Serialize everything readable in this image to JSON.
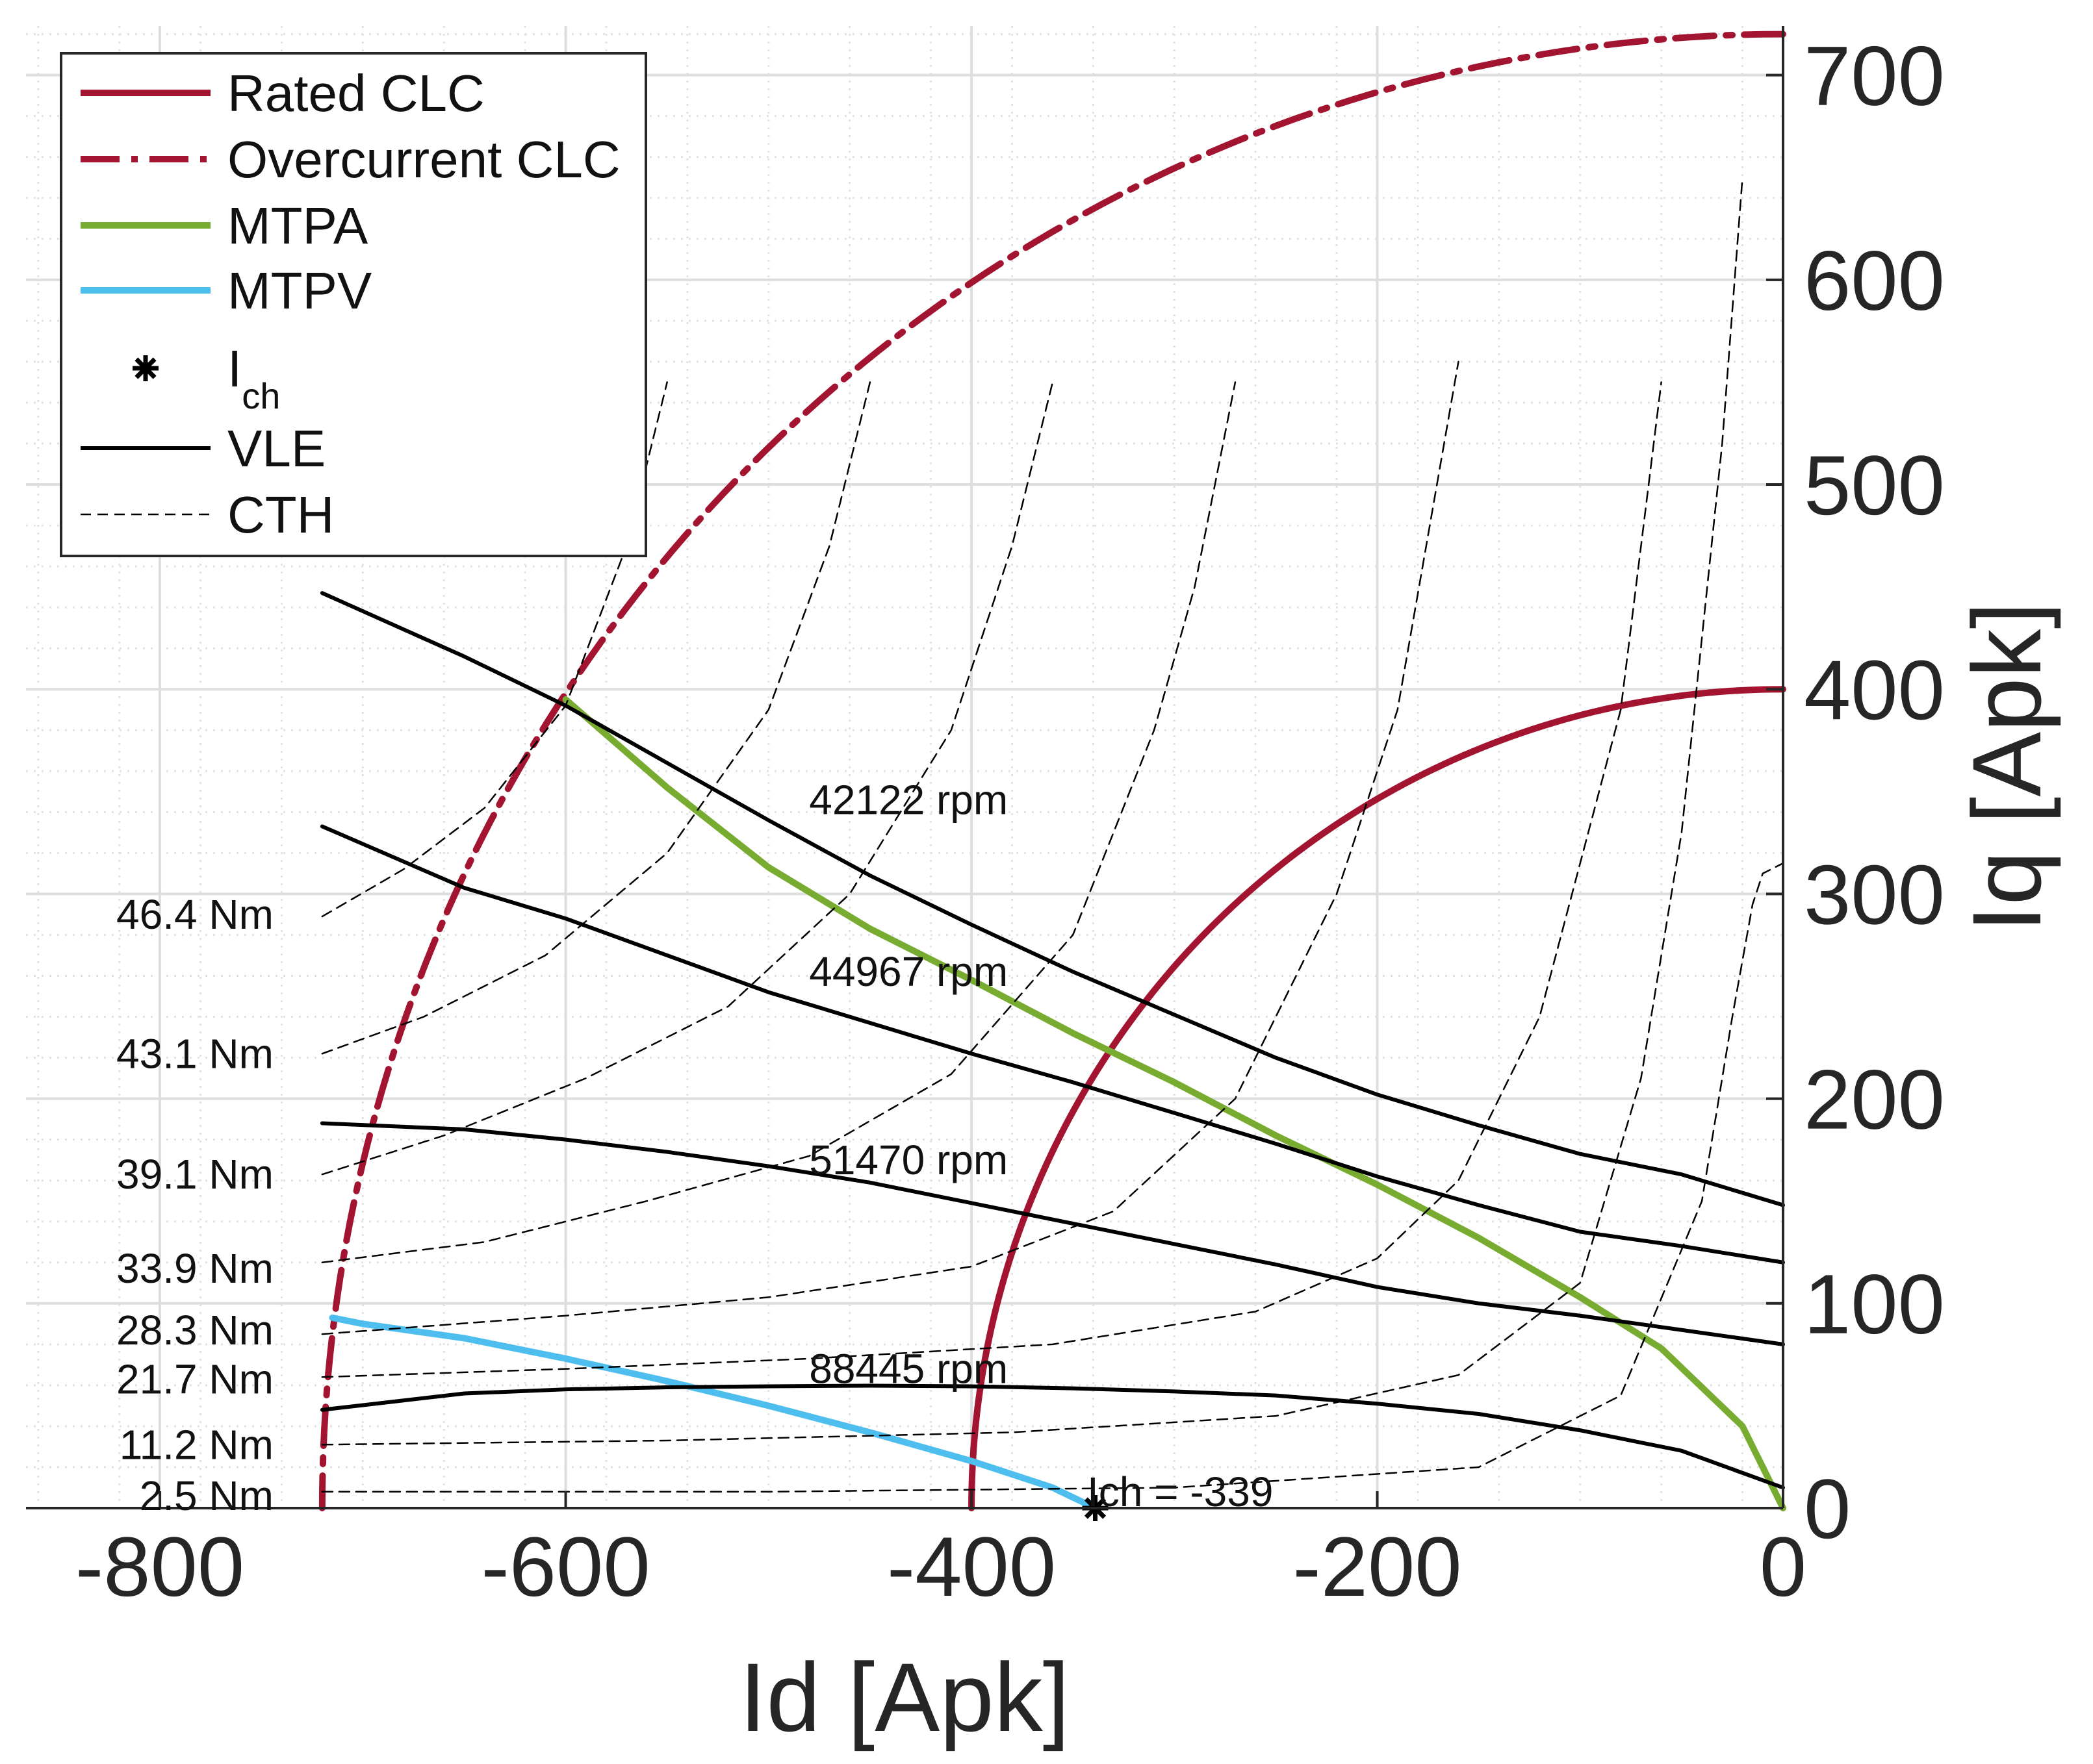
{
  "chart_data": {
    "type": "line",
    "xlabel": "Id [Apk]",
    "ylabel": "Iq [Apk]",
    "xlim": [
      -866,
      0
    ],
    "ylim": [
      0,
      724
    ],
    "x_ticks": [
      -800,
      -600,
      -400,
      -200,
      0
    ],
    "x_tick_labels": [
      "-800",
      "-600",
      "-400",
      "-200",
      "0"
    ],
    "y_ticks": [
      0,
      100,
      200,
      300,
      400,
      500,
      600,
      700
    ],
    "y_tick_labels": [
      "0",
      "100",
      "200",
      "300",
      "400",
      "500",
      "600",
      "700"
    ],
    "y_axis_location": "right",
    "grid": "major and minor",
    "legend_position": "top-left",
    "legend": [
      {
        "label": "Rated CLC",
        "style": "solid",
        "color": "#A2142F",
        "marker": "none"
      },
      {
        "label": "Overcurrent CLC",
        "style": "dashdot",
        "color": "#A2142F",
        "marker": "none"
      },
      {
        "label": "MTPA",
        "style": "solid",
        "color": "#77AC30",
        "marker": "none"
      },
      {
        "label": "MTPV",
        "style": "solid",
        "color": "#4DBEEE",
        "marker": "none"
      },
      {
        "label": "I",
        "subscript": "ch",
        "style": "none",
        "color": "#000000",
        "marker": "asterisk"
      },
      {
        "label": "VLE",
        "style": "solid",
        "color": "#000000",
        "marker": "none"
      },
      {
        "label": "CTH",
        "style": "dashed",
        "color": "#000000",
        "marker": "none"
      }
    ],
    "series": [
      {
        "name": "Rated CLC",
        "kind": "circle",
        "radius": 400,
        "id_range": [
          -400,
          0
        ]
      },
      {
        "name": "Overcurrent CLC",
        "kind": "circle",
        "radius": 720,
        "id_range": [
          -720,
          0
        ]
      },
      {
        "name": "MTPA",
        "x": [
          0,
          -20,
          -60,
          -100,
          -150,
          -200,
          -250,
          -300,
          -350,
          -400,
          -450,
          -500,
          -550,
          -600
        ],
        "y": [
          0,
          40,
          78,
          103,
          132,
          158,
          182,
          208,
          232,
          258,
          283,
          313,
          352,
          395
        ]
      },
      {
        "name": "MTPV",
        "x": [
          -339,
          -360,
          -400,
          -450,
          -500,
          -550,
          -600,
          -650,
          -700,
          -715
        ],
        "y": [
          0,
          10,
          23,
          37,
          50,
          62,
          73,
          83,
          90,
          93
        ]
      },
      {
        "name": "Ich",
        "x": [
          -339
        ],
        "y": [
          0
        ]
      },
      {
        "name": "VLE 42122 rpm",
        "x": [
          -720,
          -650,
          -600,
          -550,
          -500,
          -450,
          -400,
          -350,
          -300,
          -250,
          -200,
          -150,
          -100,
          -50,
          0
        ],
        "y": [
          447,
          416,
          392,
          364,
          336,
          309,
          285,
          262,
          241,
          220,
          202,
          187,
          173,
          163,
          148
        ]
      },
      {
        "name": "VLE 44967 rpm",
        "x": [
          -720,
          -650,
          -600,
          -550,
          -500,
          -450,
          -400,
          -350,
          -300,
          -250,
          -200,
          -150,
          -100,
          -50,
          0
        ],
        "y": [
          333,
          303,
          288,
          270,
          252,
          237,
          222,
          208,
          193,
          178,
          162,
          148,
          135,
          128,
          120
        ]
      },
      {
        "name": "VLE 51470 rpm",
        "x": [
          -720,
          -650,
          -600,
          -550,
          -500,
          -450,
          -400,
          -350,
          -300,
          -250,
          -200,
          -150,
          -100,
          -50,
          0
        ],
        "y": [
          188,
          185,
          180,
          174,
          167,
          159,
          149,
          139,
          129,
          119,
          108,
          100,
          94,
          87,
          80
        ]
      },
      {
        "name": "VLE 88445 rpm",
        "x": [
          -720,
          -650,
          -600,
          -550,
          -500,
          -450,
          -400,
          -350,
          -300,
          -250,
          -200,
          -150,
          -100,
          -50,
          0
        ],
        "y": [
          48,
          56,
          58,
          59,
          59.5,
          59.8,
          59.5,
          58.5,
          57,
          55,
          51,
          46,
          38,
          28,
          10
        ]
      },
      {
        "name": "CTH 46.4 Nm",
        "x": [
          -720,
          -680,
          -640,
          -600,
          -570,
          -550
        ],
        "y": [
          289,
          312,
          342,
          392,
          470,
          550
        ]
      },
      {
        "name": "CTH 43.1 Nm",
        "x": [
          -720,
          -670,
          -610,
          -550,
          -500,
          -470,
          -450
        ],
        "y": [
          222,
          240,
          270,
          320,
          390,
          470,
          550
        ]
      },
      {
        "name": "CTH 39.1 Nm",
        "x": [
          -720,
          -660,
          -590,
          -520,
          -460,
          -410,
          -380,
          -360
        ],
        "y": [
          163,
          182,
          210,
          245,
          300,
          380,
          470,
          550
        ]
      },
      {
        "name": "CTH 33.9 Nm",
        "x": [
          -720,
          -640,
          -560,
          -480,
          -410,
          -350,
          -310,
          -290,
          -270
        ],
        "y": [
          120,
          130,
          150,
          172,
          212,
          280,
          380,
          450,
          550
        ]
      },
      {
        "name": "CTH 28.3 Nm",
        "x": [
          -720,
          -600,
          -500,
          -400,
          -330,
          -270,
          -220,
          -190,
          -160
        ],
        "y": [
          85,
          94,
          103,
          118,
          145,
          200,
          300,
          390,
          560
        ]
      },
      {
        "name": "CTH 21.7 Nm",
        "x": [
          -720,
          -600,
          -480,
          -360,
          -260,
          -200,
          -160,
          -120,
          -80,
          -60
        ],
        "y": [
          64,
          68,
          73,
          80,
          96,
          122,
          160,
          240,
          390,
          550
        ]
      },
      {
        "name": "CTH 11.2 Nm",
        "x": [
          -720,
          -550,
          -380,
          -250,
          -160,
          -100,
          -70,
          -50,
          -30,
          -20
        ],
        "y": [
          31,
          33,
          37,
          45,
          65,
          110,
          210,
          330,
          520,
          650
        ]
      },
      {
        "name": "CTH 2.5 Nm",
        "x": [
          -720,
          -500,
          -300,
          -150,
          -80,
          -40,
          -25,
          -15,
          -10,
          0
        ],
        "y": [
          8,
          8,
          10,
          20,
          55,
          150,
          240,
          295,
          310,
          315
        ]
      }
    ],
    "annotations": [
      {
        "text": "46.4 Nm",
        "x": -744,
        "y": 290
      },
      {
        "text": "43.1 Nm",
        "x": -744,
        "y": 222
      },
      {
        "text": "39.1 Nm",
        "x": -744,
        "y": 163
      },
      {
        "text": "33.9 Nm",
        "x": -744,
        "y": 117
      },
      {
        "text": "28.3 Nm",
        "x": -744,
        "y": 87
      },
      {
        "text": "21.7 Nm",
        "x": -744,
        "y": 63
      },
      {
        "text": "11.2 Nm",
        "x": -744,
        "y": 31
      },
      {
        "text": "2.5 Nm",
        "x": -744,
        "y": 6
      },
      {
        "text": "42122 rpm",
        "x": -480,
        "y": 346
      },
      {
        "text": "44967 rpm",
        "x": -480,
        "y": 262
      },
      {
        "text": "51470 rpm",
        "x": -480,
        "y": 170
      },
      {
        "text": "88445 rpm",
        "x": -480,
        "y": 68
      },
      {
        "text": "Ich = -339",
        "x": -343,
        "y": 8
      }
    ]
  }
}
